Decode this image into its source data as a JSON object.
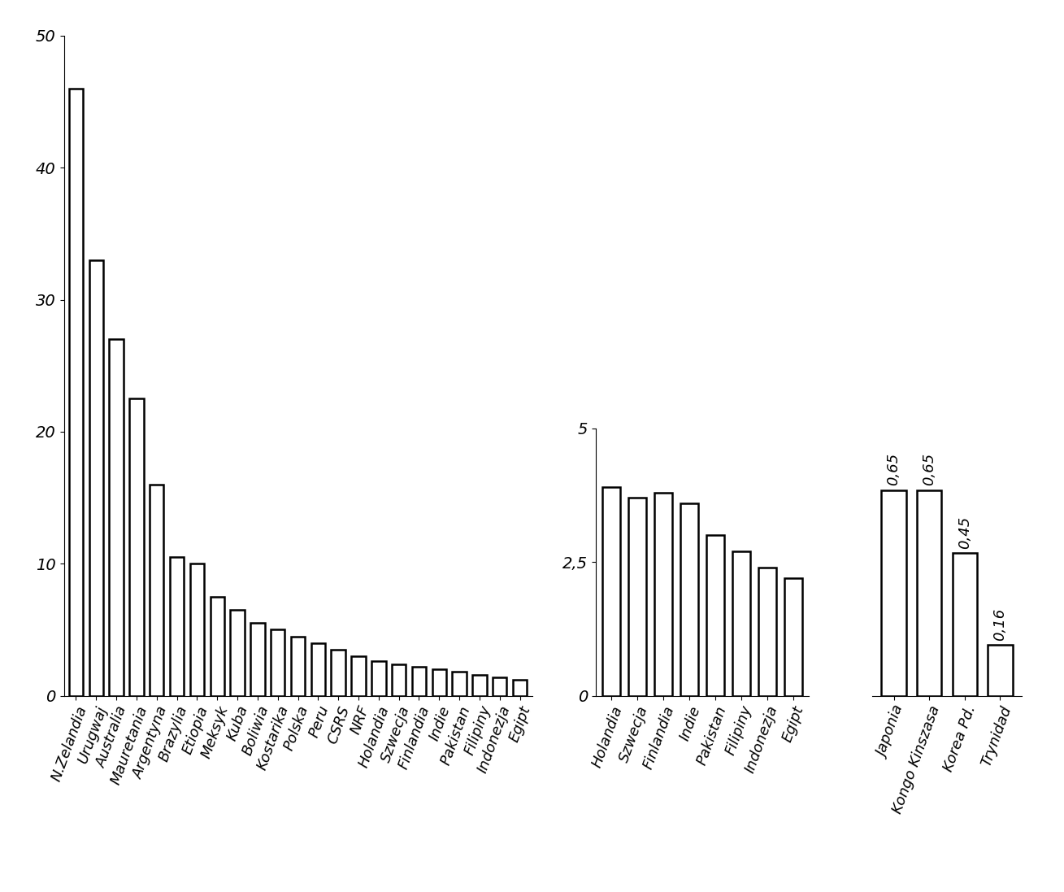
{
  "chart_data": [
    {
      "type": "bar",
      "color": "#ffffff",
      "categories": [
        "N.Zelandia",
        "Urugwaj",
        "Australia",
        "Mauretania",
        "Argentyna",
        "Brazylia",
        "Etiopia",
        "Meksyk",
        "Kuba",
        "Boliwia",
        "Kostarika",
        "Polska",
        "Peru",
        "CSRS",
        "NRF",
        "Holandia",
        "Szwecja",
        "Finlandia",
        "Indie",
        "Pakistan",
        "Filipiny",
        "Indonezja",
        "Egipt"
      ],
      "values": [
        46,
        33,
        27,
        22.5,
        16,
        10.5,
        10,
        7.5,
        6.5,
        5.5,
        5,
        4.5,
        4,
        3.5,
        3,
        2.6,
        2.4,
        2.2,
        2,
        1.8,
        1.6,
        1.4,
        1.2
      ],
      "ylim": [
        0,
        50
      ],
      "yticks": [
        0,
        10,
        20,
        30,
        40,
        50
      ],
      "grid": false
    },
    {
      "type": "bar",
      "color": "#ffffff",
      "categories": [
        "Holandia",
        "Szwecja",
        "Finlandia",
        "Indie",
        "Pakistan",
        "Filipiny",
        "Indonezja",
        "Egipt"
      ],
      "values": [
        3.9,
        3.7,
        3.8,
        3.6,
        3.0,
        2.7,
        2.4,
        2.2
      ],
      "ylim": [
        0,
        5
      ],
      "yticks": [
        0,
        {
          "value": 2.5,
          "label": "2,5"
        },
        5
      ],
      "grid": false
    },
    {
      "type": "bar",
      "color": "#ffffff",
      "categories": [
        "Japonia",
        "Kongo Kinszasa",
        "Korea Pd.",
        "Trynidad"
      ],
      "values": [
        0.65,
        0.65,
        0.45,
        0.16
      ],
      "value_labels": [
        "0,65",
        "0,65",
        "0,45",
        "0,16"
      ],
      "data_labels": true,
      "tick_labels": "x"
    }
  ]
}
